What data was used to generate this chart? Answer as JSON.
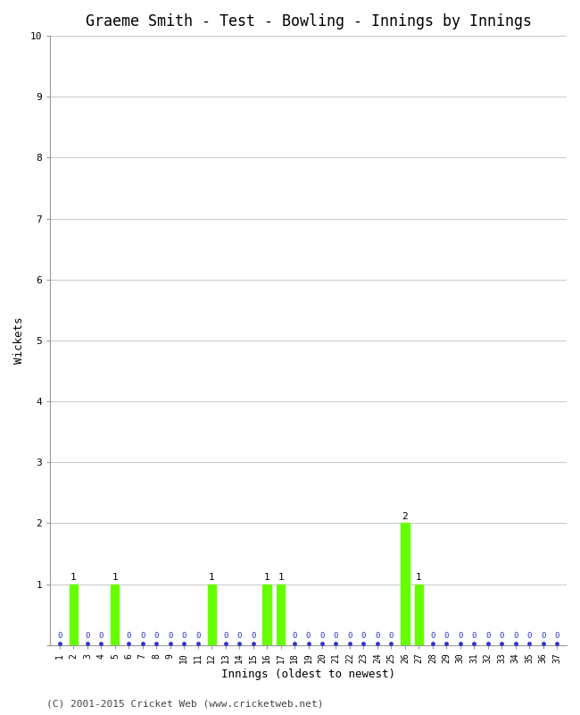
{
  "title": "Graeme Smith - Test - Bowling - Innings by Innings",
  "xlabel": "Innings (oldest to newest)",
  "ylabel": "Wickets",
  "footer": "(C) 2001-2015 Cricket Web (www.cricketweb.net)",
  "ylim": [
    0,
    10
  ],
  "yticks": [
    0,
    1,
    2,
    3,
    4,
    5,
    6,
    7,
    8,
    9,
    10
  ],
  "num_innings": 37,
  "wickets": [
    0,
    1,
    0,
    0,
    1,
    0,
    0,
    0,
    0,
    0,
    0,
    1,
    0,
    0,
    0,
    1,
    1,
    0,
    0,
    0,
    0,
    0,
    0,
    0,
    0,
    2,
    1,
    0,
    0,
    0,
    0,
    0,
    0,
    0,
    0,
    0,
    0
  ],
  "bar_color": "#66ff00",
  "zero_color": "#3333cc",
  "background_color": "#ffffff",
  "grid_color": "#cccccc",
  "title_fontsize": 12,
  "label_fontsize": 9,
  "tick_fontsize": 8,
  "annotation_fontsize": 8,
  "footer_fontsize": 8,
  "bar_width": 0.6
}
